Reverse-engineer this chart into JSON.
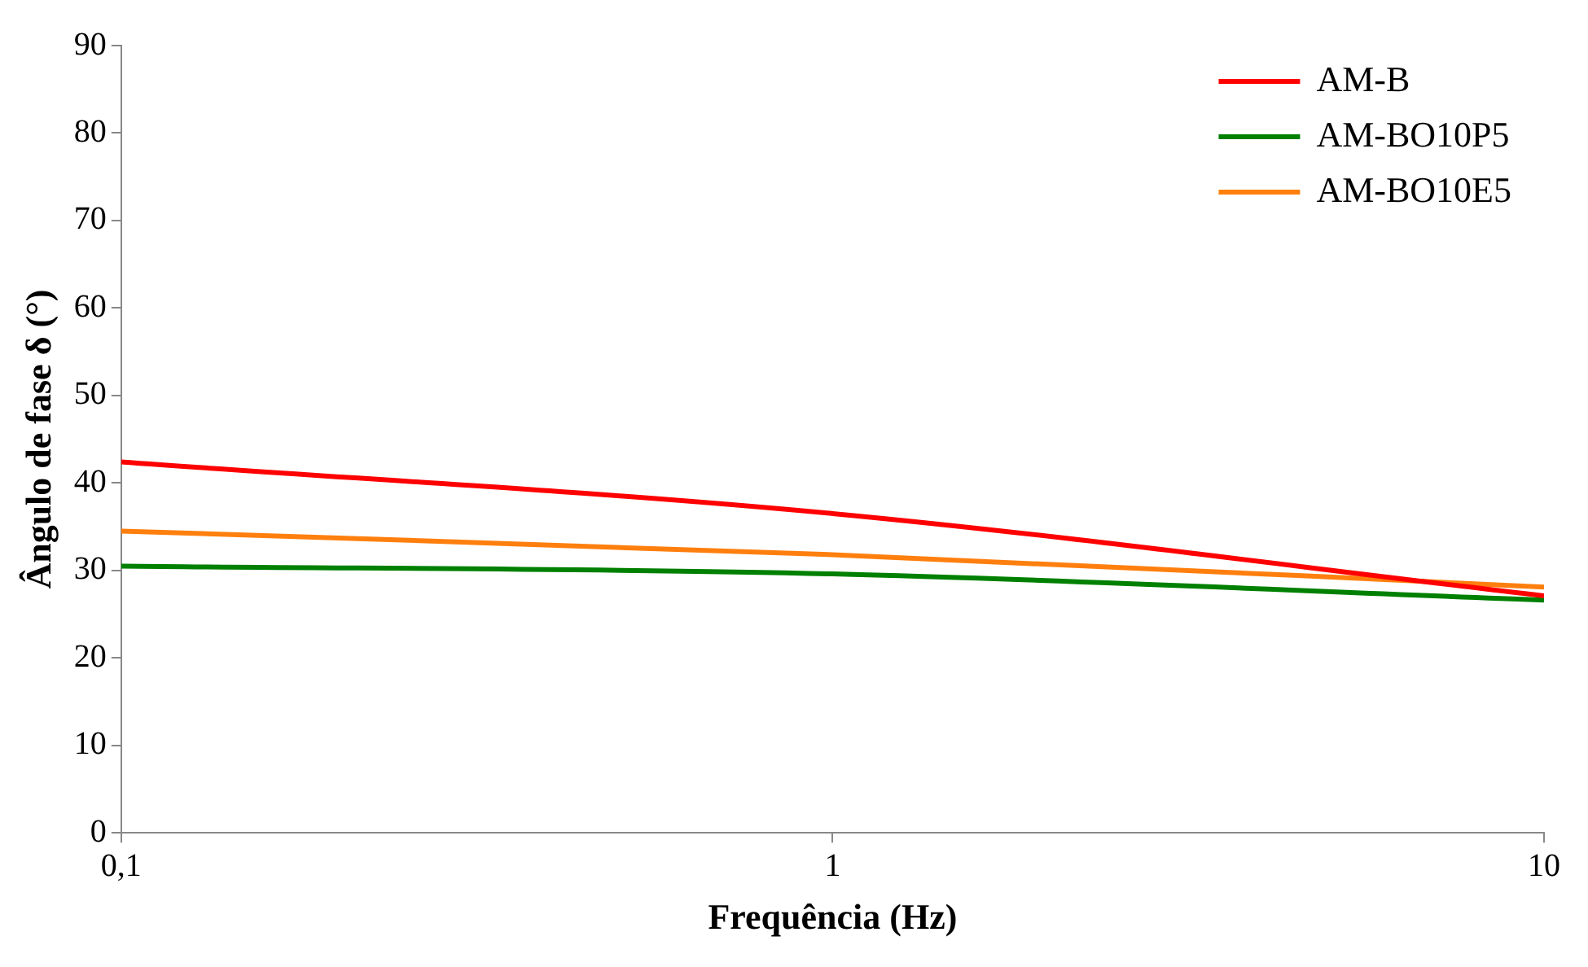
{
  "chart_data": {
    "type": "line",
    "xlabel": "Frequência (Hz)",
    "ylabel": "Ângulo de fase δ (°)",
    "x": [
      0.1,
      1,
      10
    ],
    "series": [
      {
        "name": "AM-B",
        "color": "#ff0000",
        "values": [
          42.4,
          36.5,
          27.1
        ]
      },
      {
        "name": "AM-BO10P5",
        "color": "#008000",
        "values": [
          30.5,
          29.6,
          26.6
        ]
      },
      {
        "name": "AM-BO10E5",
        "color": "#ff7f0e",
        "values": [
          34.5,
          31.8,
          28.1
        ]
      }
    ],
    "log": "x",
    "xlim": [
      0.1,
      10
    ],
    "xticks": [
      {
        "value": 0.1,
        "label": "0,1"
      },
      1,
      10
    ],
    "ylim": [
      0,
      90
    ],
    "yticks": [
      0,
      10,
      20,
      30,
      40,
      50,
      60,
      70,
      80,
      90
    ],
    "grid": false,
    "legend": "top right",
    "marker": "none",
    "line_style": "solid"
  }
}
